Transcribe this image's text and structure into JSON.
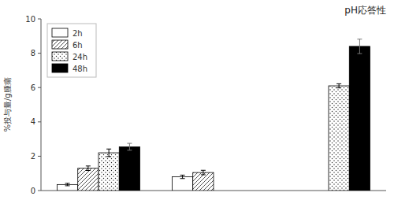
{
  "chart_data": {
    "type": "bar",
    "title": "pH応答性",
    "y_label": "%投与量/g腫瘍",
    "categories": [
      null,
      null,
      null
    ],
    "series": [
      {
        "name": "2h",
        "color": "white",
        "values": [
          0.35,
          0.8,
          null
        ],
        "errors": [
          0.07,
          0.1,
          null
        ]
      },
      {
        "name": "6h",
        "color": "white",
        "values": [
          1.3,
          1.05,
          null
        ],
        "errors": [
          0.13,
          0.13,
          null
        ]
      },
      {
        "name": "24h",
        "color": "white",
        "values": [
          2.2,
          null,
          6.1
        ],
        "errors": [
          0.22,
          null,
          0.12
        ]
      },
      {
        "name": "48h",
        "color": "black",
        "values": [
          2.55,
          null,
          8.4
        ],
        "errors": [
          0.2,
          null,
          0.42
        ]
      }
    ],
    "ylim": [
      0,
      10
    ],
    "yticks": [
      0,
      2,
      4,
      6,
      8,
      10
    ],
    "grid": false,
    "legend": "upper left",
    "tick_labels": "y"
  }
}
